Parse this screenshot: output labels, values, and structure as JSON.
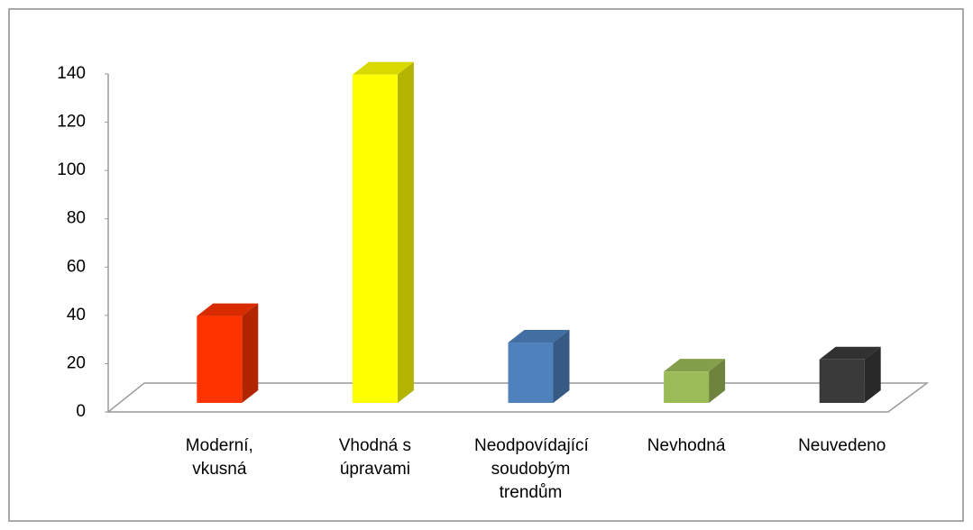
{
  "chart_data": {
    "type": "bar3d",
    "categories": [
      "Moderní, vkusná",
      "Vhodná s úpravami",
      "Neodpovídající soudobým trendům",
      "Nevhodná",
      "Neuvedeno"
    ],
    "values": [
      36,
      136,
      25,
      13,
      18
    ],
    "colors": [
      "#ff3300",
      "#ffff00",
      "#4f81bd",
      "#9bbb59",
      "#3a3a3a"
    ],
    "ylim": [
      0,
      140
    ],
    "yticks": [
      0,
      20,
      40,
      60,
      80,
      100,
      120,
      140
    ]
  }
}
